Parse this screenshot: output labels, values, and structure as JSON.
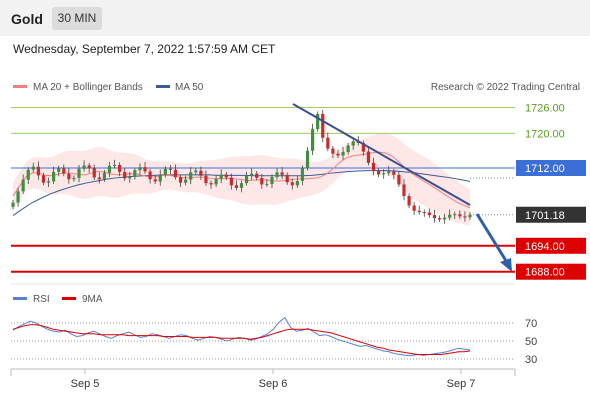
{
  "header": {
    "title": "Gold",
    "timeframe": "30 MIN"
  },
  "datetime": "Wednesday, September 7, 2022 1:57:59 AM CET",
  "legend": {
    "ma20": "MA 20 + Bollinger Bands",
    "ma50": "MA 50",
    "credit": "Research © 2022 Trading Central"
  },
  "osc_legend": {
    "rsi": "RSI",
    "ma9": "9MA"
  },
  "colors": {
    "ma20": "#f08080",
    "ma50": "#3a5a9a",
    "resistance": "#9ccc65",
    "pivot": "#3a6fd8",
    "support": "#dd0000",
    "bull": "#3f8f3f",
    "bear": "#cc2a2a",
    "bands": "#fde3e3",
    "rsi": "#5a7ed6"
  },
  "chart_data": [
    {
      "type": "candlestick",
      "x_ticks": [
        "Sep 5",
        "Sep 6",
        "Sep 7"
      ],
      "y_ticks": [
        1688.0,
        1694.0,
        1701.18,
        1712.0,
        1720.0,
        1726.0
      ],
      "ylim": [
        1687,
        1730
      ],
      "levels": [
        {
          "label": "1726.00",
          "value": 1726.0,
          "kind": "resistance"
        },
        {
          "label": "1720.00",
          "value": 1720.0,
          "kind": "resistance"
        },
        {
          "label": "1712.00",
          "value": 1712.0,
          "kind": "pivot"
        },
        {
          "label": "1694.00",
          "value": 1694.0,
          "kind": "support"
        },
        {
          "label": "1688.00",
          "value": 1688.0,
          "kind": "support"
        }
      ],
      "last_price": "1701.18",
      "close_series": [
        1704.0,
        1706.6,
        1709.3,
        1711.6,
        1712.3,
        1710.3,
        1708.6,
        1708.9,
        1711.1,
        1711.9,
        1710.7,
        1709.4,
        1709.7,
        1711.8,
        1712.6,
        1711.9,
        1709.8,
        1709.4,
        1710.9,
        1712.5,
        1712.7,
        1711.1,
        1709.6,
        1709.9,
        1711.5,
        1712.2,
        1711.2,
        1709.4,
        1708.9,
        1710.4,
        1711.8,
        1711.6,
        1709.9,
        1708.6,
        1709.3,
        1711.0,
        1711.4,
        1710.2,
        1708.5,
        1708.2,
        1709.5,
        1710.5,
        1709.8,
        1708.0,
        1707.4,
        1708.5,
        1710.2,
        1710.7,
        1709.7,
        1708.2,
        1708.3,
        1709.9,
        1711.0,
        1710.4,
        1708.7,
        1708.0,
        1709.0,
        1712.0,
        1716.0,
        1721.0,
        1724.5,
        1719.0,
        1716.5,
        1715.3,
        1714.9,
        1715.7,
        1717.2,
        1718.2,
        1717.8,
        1715.8,
        1713.2,
        1711.3,
        1710.5,
        1710.8,
        1711.2,
        1710.4,
        1708.2,
        1705.5,
        1703.3,
        1702.1,
        1701.8,
        1701.7,
        1701.1,
        1700.4,
        1700.1,
        1700.5,
        1701.2,
        1701.3,
        1700.8,
        1700.6,
        1701.18
      ],
      "ma20": [
        1705.5,
        1707.8,
        1710.0,
        1710.9,
        1710.8,
        1710.3,
        1710.2,
        1710.6,
        1710.9,
        1710.8,
        1710.5,
        1710.4,
        1710.8,
        1711.2,
        1711.1,
        1710.6,
        1710.4,
        1710.5,
        1710.7,
        1710.6,
        1710.2,
        1709.9,
        1710.0,
        1710.3,
        1710.3,
        1710.0,
        1709.8,
        1709.7,
        1709.9,
        1709.9,
        1709.7,
        1709.5,
        1709.5,
        1709.6,
        1709.5,
        1709.3,
        1709.1,
        1709.2,
        1709.3,
        1709.2,
        1709.0,
        1709.0,
        1709.2,
        1709.4,
        1709.5,
        1709.5,
        1709.6,
        1709.9,
        1710.6,
        1711.8,
        1713.2,
        1714.3,
        1714.8,
        1715.0,
        1715.2,
        1715.5,
        1715.7,
        1715.5,
        1714.8,
        1713.6,
        1712.1,
        1710.8,
        1709.8,
        1708.9,
        1708.0,
        1707.0,
        1706.0,
        1705.0,
        1704.1,
        1703.4,
        1702.8
      ],
      "ma50": [
        1701.0,
        1702.5,
        1703.9,
        1705.0,
        1706.0,
        1706.8,
        1707.5,
        1708.1,
        1708.6,
        1709.0,
        1709.4,
        1709.7,
        1709.9,
        1710.1,
        1710.2,
        1710.3,
        1710.4,
        1710.4,
        1710.4,
        1710.4,
        1710.4,
        1710.4,
        1710.3,
        1710.3,
        1710.3,
        1710.3,
        1710.2,
        1710.2,
        1710.2,
        1710.2,
        1710.2,
        1710.2,
        1710.3,
        1710.5,
        1710.8,
        1711.0,
        1711.2,
        1711.3,
        1711.4,
        1711.4,
        1711.4,
        1711.3,
        1711.1,
        1710.9,
        1710.6,
        1710.3,
        1710.0,
        1709.7,
        1709.3,
        1708.9
      ]
    },
    {
      "type": "line",
      "series": [
        {
          "name": "RSI"
        },
        {
          "name": "9MA"
        }
      ],
      "y_ticks": [
        30,
        50,
        70
      ],
      "ylim": [
        20,
        80
      ],
      "rsi": [
        62,
        66,
        69,
        72,
        70,
        66,
        63,
        61,
        60,
        62,
        58,
        55,
        56,
        59,
        61,
        58,
        55,
        53,
        56,
        58,
        60,
        57,
        54,
        55,
        58,
        57,
        55,
        53,
        55,
        57,
        56,
        53,
        51,
        53,
        55,
        54,
        52,
        50,
        52,
        54,
        53,
        51,
        52,
        55,
        58,
        63,
        71,
        76,
        65,
        61,
        62,
        64,
        60,
        56,
        57,
        55,
        52,
        50,
        48,
        46,
        44,
        45,
        43,
        41,
        39,
        38,
        36,
        35,
        34,
        34,
        35,
        34,
        35,
        36,
        37,
        38,
        40,
        42,
        41,
        40
      ],
      "ma9": [
        63,
        65,
        67,
        68,
        68,
        67,
        65,
        63,
        62,
        61,
        60,
        59,
        58,
        58,
        58,
        57,
        57,
        57,
        57,
        57,
        56,
        56,
        56,
        56,
        56,
        56,
        55,
        55,
        55,
        55,
        55,
        54,
        54,
        54,
        54,
        54,
        53,
        53,
        53,
        53,
        53,
        52,
        53,
        54,
        56,
        58,
        60,
        62,
        63,
        63,
        63,
        63,
        62,
        61,
        60,
        59,
        57,
        55,
        53,
        51,
        49,
        47,
        45,
        43,
        42,
        40,
        39,
        38,
        37,
        36,
        35,
        35,
        35,
        35,
        35,
        36,
        37,
        38,
        38,
        39
      ]
    }
  ]
}
